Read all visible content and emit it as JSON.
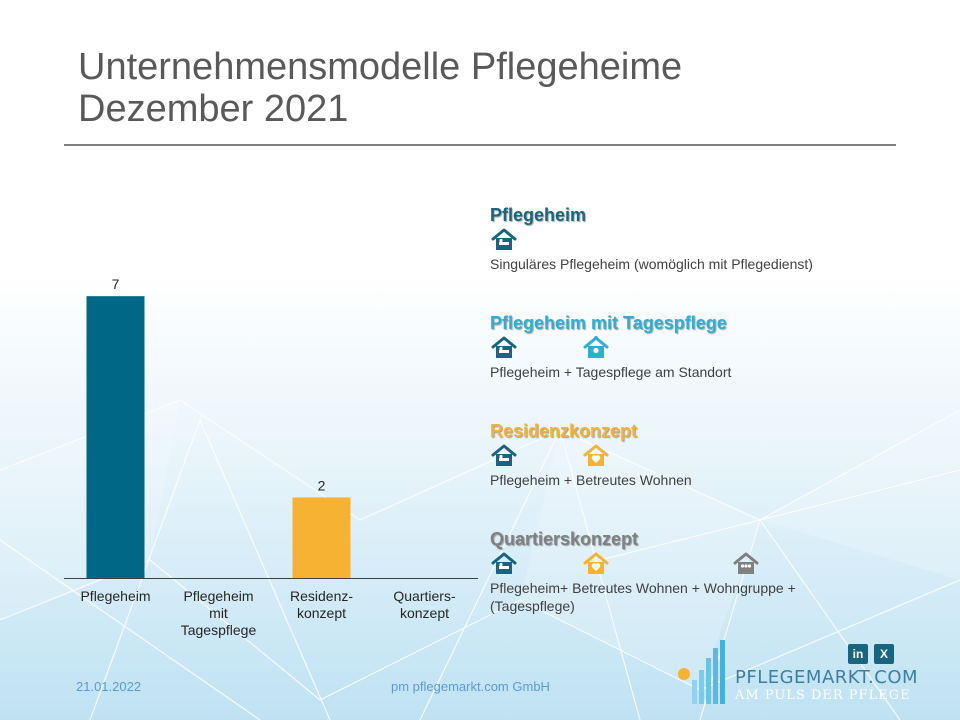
{
  "title": {
    "line1": "Unternehmensmodelle Pflegeheime",
    "line2": "Dezember 2021"
  },
  "chart_data": {
    "type": "bar",
    "title": "Unternehmensmodelle Pflegeheime Dezember 2021",
    "categories": [
      "Pflegeheim",
      "Pflegeheim mit Tagespflege",
      "Residenz- konzept",
      "Quartiers- konzept"
    ],
    "category_lines": [
      [
        "Pflegeheim"
      ],
      [
        "Pflegeheim",
        "mit",
        "Tagespflege"
      ],
      [
        "Residenz-",
        "konzept"
      ],
      [
        "Quartiers-",
        "konzept"
      ]
    ],
    "values": [
      7,
      0,
      2,
      0
    ],
    "data_labels": [
      "7",
      "",
      "2",
      ""
    ],
    "bar_colors": [
      "#006887",
      "#2eaed2",
      "#f6b232",
      "#7f7f7f"
    ],
    "ylim": [
      0,
      7.6
    ],
    "xlabel": "",
    "ylabel": "",
    "grid": false
  },
  "colors": {
    "teal": "#17657f",
    "light_blue": "#2eaed2",
    "orange": "#f6b232",
    "gray": "#808080"
  },
  "legend": [
    {
      "title": "Pflegeheim",
      "color": "#17657f",
      "icons": [
        "house-bed-icon"
      ],
      "desc": "Singuläres Pflegeheim (womöglich mit Pflegedienst)"
    },
    {
      "title": "Pflegeheim mit Tagespflege",
      "color": "#2eaed2",
      "icons": [
        "house-bed-icon",
        "house-sun-icon"
      ],
      "desc": "Pflegeheim + Tagespflege am Standort"
    },
    {
      "title": "Residenzkonzept",
      "color": "#f6b232",
      "icons": [
        "house-bed-icon",
        "house-heart-icon"
      ],
      "desc": "Pflegeheim + Betreutes Wohnen"
    },
    {
      "title": "Quartierskonzept",
      "color": "#808080",
      "icons": [
        "house-bed-icon",
        "house-heart-icon",
        "house-group-icon"
      ],
      "desc": "Pflegeheim+ Betreutes Wohnen + Wohngruppe + (Tagespflege)"
    }
  ],
  "footer": {
    "date": "21.01.2022",
    "company": "pm pflegemarkt.com GmbH"
  },
  "social": {
    "linkedin": "in",
    "xing": "X"
  },
  "logo": {
    "name": "PFLEGEMARKT.COM",
    "tagline": "AM PULS DER PFLEGE"
  }
}
